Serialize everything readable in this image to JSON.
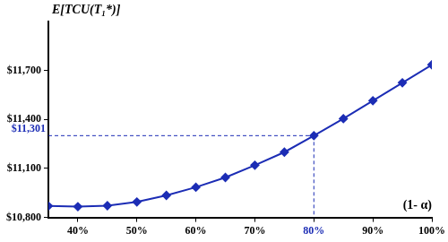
{
  "chart_data": {
    "type": "line",
    "y_label": "E[TCU(T₁*)]",
    "x_label": "(1- α)",
    "x": [
      35,
      40,
      45,
      50,
      55,
      60,
      65,
      70,
      75,
      80,
      85,
      90,
      95,
      100
    ],
    "values": [
      10870,
      10866,
      10872,
      10895,
      10935,
      10985,
      11045,
      11120,
      11200,
      11301,
      11405,
      11515,
      11625,
      11735
    ],
    "color": "#1c2db5",
    "marker": "diamond",
    "xlim": [
      35,
      100
    ],
    "xticks": [
      {
        "value": 40,
        "label": "40%"
      },
      {
        "value": 50,
        "label": "50%"
      },
      {
        "value": 60,
        "label": "60%"
      },
      {
        "value": 70,
        "label": "70%"
      },
      {
        "value": 80,
        "label": "80%"
      },
      {
        "value": 90,
        "label": "90%"
      },
      {
        "value": 100,
        "label": "100%"
      }
    ],
    "ylim": [
      10800,
      12000
    ],
    "yticks": [
      {
        "value": 10800,
        "label": "$10,800"
      },
      {
        "value": 11100,
        "label": "$11,100"
      },
      {
        "value": 11400,
        "label": "$11,400"
      },
      {
        "value": 11700,
        "label": "$11,700"
      }
    ],
    "grid": false,
    "annotations": [
      {
        "text": "$11,301",
        "x": 80,
        "y": 11301
      }
    ]
  }
}
